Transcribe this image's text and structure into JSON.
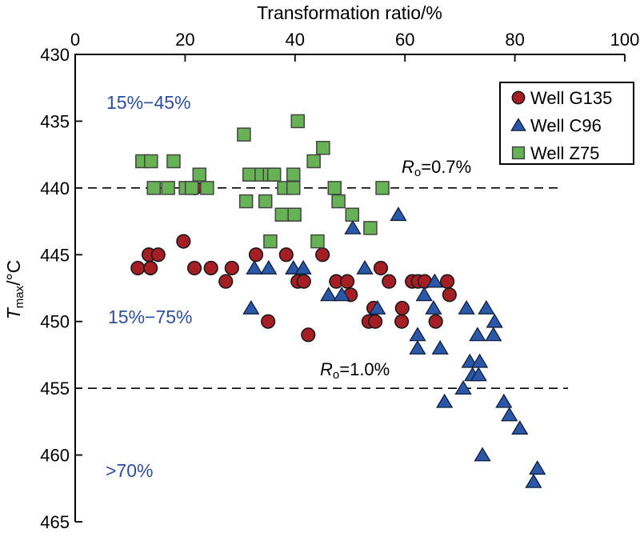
{
  "chart_data": {
    "type": "scatter",
    "x_axis": {
      "title": "Transformation ratio/%",
      "range": [
        0,
        100
      ],
      "ticks": [
        0,
        20,
        40,
        60,
        80,
        100
      ],
      "position": "top"
    },
    "y_axis": {
      "title_parts": {
        "main": "T",
        "sub": "max",
        "rest": "/°C"
      },
      "range": [
        430,
        465
      ],
      "ticks": [
        430,
        435,
        440,
        445,
        450,
        455,
        460,
        465
      ],
      "inverted": true
    },
    "reference_lines": [
      {
        "y": 440,
        "label_main": "R",
        "label_sub": "o",
        "label_rest": "=0.7%"
      },
      {
        "y": 455,
        "label_main": "R",
        "label_sub": "o",
        "label_rest": "=1.0%"
      }
    ],
    "series": [
      {
        "name": "Well G135",
        "marker": "circle",
        "fill": "#A51E23",
        "stroke": "#1a1a1a",
        "points": [
          [
            21.8,
            440
          ],
          [
            19.7,
            444
          ],
          [
            13.4,
            445
          ],
          [
            15.1,
            445
          ],
          [
            32.9,
            445
          ],
          [
            38.4,
            445
          ],
          [
            45.0,
            445
          ],
          [
            11.4,
            446
          ],
          [
            13.7,
            446
          ],
          [
            21.7,
            446
          ],
          [
            24.7,
            446
          ],
          [
            28.5,
            446
          ],
          [
            55.6,
            446
          ],
          [
            27.4,
            447
          ],
          [
            40.5,
            447
          ],
          [
            41.6,
            447
          ],
          [
            47.5,
            447
          ],
          [
            49.5,
            447
          ],
          [
            57.1,
            447
          ],
          [
            61.3,
            447
          ],
          [
            62.4,
            447
          ],
          [
            63.6,
            447
          ],
          [
            67.7,
            447
          ],
          [
            50.1,
            448
          ],
          [
            68.1,
            448
          ],
          [
            54.3,
            449
          ],
          [
            59.5,
            449
          ],
          [
            35.1,
            450
          ],
          [
            53.4,
            450
          ],
          [
            54.6,
            450
          ],
          [
            59.4,
            450
          ],
          [
            65.6,
            450
          ],
          [
            42.4,
            451
          ]
        ]
      },
      {
        "name": "Well C96",
        "marker": "triangle",
        "fill": "#2B57A8",
        "stroke": "#101f3c",
        "points": [
          [
            58.8,
            442
          ],
          [
            50.5,
            443
          ],
          [
            32.6,
            446
          ],
          [
            35.2,
            446
          ],
          [
            39.7,
            446
          ],
          [
            41.5,
            446
          ],
          [
            52.7,
            446
          ],
          [
            65.4,
            447
          ],
          [
            46.1,
            448
          ],
          [
            48.5,
            448
          ],
          [
            63.5,
            448
          ],
          [
            32.0,
            449
          ],
          [
            55.0,
            449
          ],
          [
            65.2,
            449
          ],
          [
            71.2,
            449
          ],
          [
            74.8,
            449
          ],
          [
            76.3,
            450
          ],
          [
            62.3,
            451
          ],
          [
            73.2,
            451
          ],
          [
            76.1,
            451
          ],
          [
            62.3,
            452
          ],
          [
            66.4,
            452
          ],
          [
            71.8,
            453
          ],
          [
            73.6,
            453
          ],
          [
            72.3,
            454
          ],
          [
            73.4,
            454
          ],
          [
            70.6,
            455
          ],
          [
            67.2,
            456
          ],
          [
            78.0,
            456
          ],
          [
            79.0,
            457
          ],
          [
            80.9,
            458
          ],
          [
            74.1,
            460
          ],
          [
            84.1,
            461
          ],
          [
            83.4,
            462
          ]
        ]
      },
      {
        "name": "Well Z75",
        "marker": "square",
        "fill": "#66B254",
        "stroke": "#444444",
        "points": [
          [
            40.5,
            435
          ],
          [
            30.7,
            436
          ],
          [
            45.1,
            437
          ],
          [
            12.2,
            438
          ],
          [
            13.8,
            438
          ],
          [
            17.9,
            438
          ],
          [
            43.4,
            438
          ],
          [
            22.6,
            439
          ],
          [
            31.7,
            439
          ],
          [
            33.9,
            439
          ],
          [
            35.4,
            439
          ],
          [
            36.2,
            439
          ],
          [
            39.7,
            439
          ],
          [
            14.3,
            440
          ],
          [
            16.9,
            440
          ],
          [
            20.1,
            440
          ],
          [
            21.2,
            440
          ],
          [
            24.0,
            440
          ],
          [
            38.0,
            440
          ],
          [
            39.7,
            440
          ],
          [
            47.2,
            440
          ],
          [
            55.9,
            440
          ],
          [
            31.1,
            441
          ],
          [
            34.6,
            441
          ],
          [
            47.9,
            441
          ],
          [
            37.6,
            442
          ],
          [
            39.9,
            442
          ],
          [
            50.4,
            442
          ],
          [
            53.7,
            443
          ],
          [
            35.5,
            444
          ],
          [
            44.1,
            444
          ]
        ]
      }
    ],
    "grid": false,
    "legend_position": "upper-right-inside"
  },
  "annotations": {
    "zone1": "15%−45%",
    "zone2": "15%−75%",
    "zone3": ">70%"
  },
  "legend": {
    "items": [
      {
        "label": "Well G135",
        "marker": "circle",
        "color": "#A51E23"
      },
      {
        "label": "Well C96",
        "marker": "triangle",
        "color": "#2B57A8"
      },
      {
        "label": "Well Z75",
        "marker": "square",
        "color": "#66B254"
      }
    ]
  }
}
